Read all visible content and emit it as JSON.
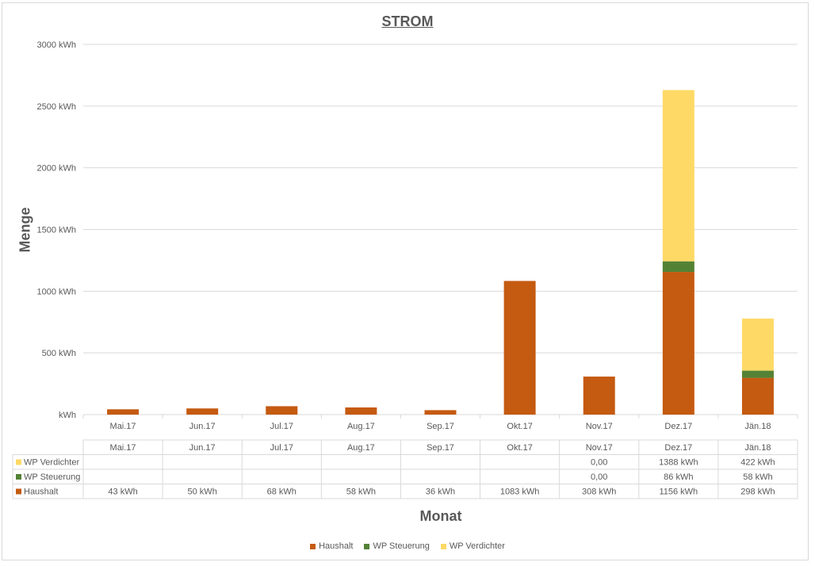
{
  "colors": {
    "Haushalt": "#c55a11",
    "WP Steuerung": "#548235",
    "WP Verdichter": "#ffd966"
  },
  "chart_data": {
    "type": "bar",
    "stacked": true,
    "title": "STROM",
    "xlabel": "Monat",
    "ylabel": "Menge",
    "ylim": [
      0,
      3000
    ],
    "yticks": [
      "kWh",
      "500 kWh",
      "1000 kWh",
      "1500 kWh",
      "2000 kWh",
      "2500 kWh",
      "3000 kWh"
    ],
    "grid": true,
    "legend_position": "bottom",
    "categories": [
      "Mai.17",
      "Jun.17",
      "Jul.17",
      "Aug.17",
      "Sep.17",
      "Okt.17",
      "Nov.17",
      "Dez.17",
      "Jän.18"
    ],
    "series": [
      {
        "name": "Haushalt",
        "values": [
          43,
          50,
          68,
          58,
          36,
          1083,
          308,
          1156,
          298
        ],
        "labels": [
          "43 kWh",
          "50 kWh",
          "68 kWh",
          "58 kWh",
          "36 kWh",
          "1083 kWh",
          "308 kWh",
          "1156 kWh",
          "298 kWh"
        ]
      },
      {
        "name": "WP Steuerung",
        "values": [
          null,
          null,
          null,
          null,
          null,
          null,
          0,
          86,
          58
        ],
        "labels": [
          "",
          "",
          "",
          "",
          "",
          "",
          "0,00",
          "86 kWh",
          "58 kWh"
        ]
      },
      {
        "name": "WP Verdichter",
        "values": [
          null,
          null,
          null,
          null,
          null,
          null,
          0,
          1388,
          422
        ],
        "labels": [
          "",
          "",
          "",
          "",
          "",
          "",
          "0,00",
          "1388 kWh",
          "422 kWh"
        ]
      }
    ]
  }
}
